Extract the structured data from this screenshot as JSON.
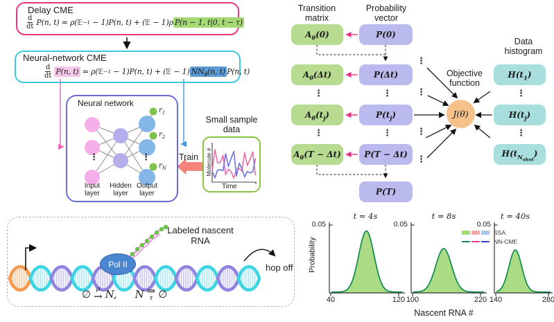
{
  "colors": {
    "delay_border": "#e83a7c",
    "nncme_border": "#3ec9de",
    "network_border": "#6a6ad4",
    "sample_border": "#88c440",
    "highlight_green": "#a5d974",
    "highlight_pink": "#f6c8ea",
    "highlight_blue": "#5b9ad2",
    "matrix_box": "#b7db90",
    "vector_box": "#babaee",
    "histogram_box": "#a9dede",
    "objective_circle": "#f6c289",
    "pink_arrow": "#e8308a"
  },
  "delay_cme": {
    "title": "Delay CME",
    "eq": {
      "num": "d",
      "den": "dt",
      "seg1": "P(n, t) = ρ(𝔼",
      "sup": "−1",
      "seg2": " − 1)P(n, t) + (𝔼 − 1)ρ",
      "highlight": "P(n − 1, t|0, t − τ)"
    }
  },
  "nn_cme": {
    "title": "Neural-network CME",
    "eq": {
      "num": "d",
      "den": "dt",
      "hl_pink": "P(n, t)",
      "seg1": " = ρ(𝔼",
      "sup": "−1",
      "seg2": " − 1)P(n, t) + (𝔼 − 1)",
      "hl_blue_base": "NN",
      "hl_blue_sub": "θ",
      "hl_blue_rest": "(n, t)",
      "seg3": "P(n, t)"
    }
  },
  "network": {
    "title": "Neural network",
    "dots": "⋮",
    "rates": [
      {
        "base": "r",
        "sub": "1"
      },
      {
        "base": "r",
        "sub": "2"
      },
      {
        "base": "r",
        "sub": "N"
      }
    ],
    "layers": [
      {
        "l1": "Input",
        "l2": "layer"
      },
      {
        "l1": "Hidden",
        "l2": "layer"
      },
      {
        "l1": "Output",
        "l2": "layer"
      }
    ]
  },
  "sample": {
    "title1": "Small sample",
    "title2": "data",
    "ylabel": "Molecule #",
    "xlabel": "Time",
    "train": "Train"
  },
  "flow": {
    "dots": "⋮",
    "matrix_header1": "Transition",
    "matrix_header2": "matrix",
    "vector_header1": "Probability",
    "vector_header2": "vector",
    "hist_header1": "Data",
    "hist_header2": "histogram",
    "objective1": "Objective",
    "objective2": "function",
    "objective_label": "J(θ)",
    "matrix": [
      {
        "base": "A",
        "sub": "θ",
        "pre": "(0)"
      },
      {
        "base": "A",
        "sub": "θ",
        "pre": "(Δt)"
      },
      {
        "base": "A",
        "sub": "θ",
        "pre": "(t",
        "isub": "j",
        "post": ")"
      },
      {
        "base": "A",
        "sub": "θ",
        "pre": "(T − Δt)"
      }
    ],
    "vector": [
      {
        "base": "P",
        "pre": "(0)"
      },
      {
        "base": "P",
        "pre": "(Δt)"
      },
      {
        "base": "P",
        "pre": "(t",
        "isub": "j",
        "post": ")"
      },
      {
        "base": "P",
        "pre": "(T − Δt)"
      },
      {
        "base": "P",
        "pre": "(T)"
      }
    ],
    "hist": [
      {
        "base": "H",
        "pre": "(t",
        "isub": "1",
        "post": ")"
      },
      {
        "base": "H",
        "pre": "(t",
        "isub": "j",
        "post": ")"
      },
      {
        "base": "H",
        "pre": "(t",
        "isub": "N",
        "isubsub": "shot",
        "post": ")"
      }
    ]
  },
  "gene": {
    "label1": "Labeled nascent",
    "label2": "RNA",
    "polii": "Pol II",
    "hopoff": "hop off",
    "rx": {
      "e1": "∅ ",
      "over": "ρ",
      "arr1": "→",
      "n1": " N,",
      "n2": "N",
      "arr2": "⇒",
      "under": "τ",
      "e2": " ∅"
    }
  },
  "chart_data": {
    "type": "area",
    "ylabel": "Probability",
    "xlabel": "Nascent RNA #",
    "ylim": [
      0,
      0.05
    ],
    "ytick_label": "0.05",
    "grid": false,
    "panels": [
      {
        "title": "t = 4s",
        "xlim": [
          40,
          120
        ],
        "xtick_labels": [
          "40",
          "120"
        ],
        "peak_x": 82,
        "peak_prob": 0.045,
        "sigma": 9
      },
      {
        "title": "t = 8s",
        "xlim": [
          100,
          220
        ],
        "xtick_labels": [
          "100",
          "220"
        ],
        "peak_x": 155,
        "peak_prob": 0.032,
        "sigma": 14
      },
      {
        "title": "t = 40s",
        "xlim": [
          140,
          280
        ],
        "xtick_labels": [
          "140",
          "280"
        ],
        "peak_x": 192,
        "peak_prob": 0.031,
        "sigma": 17
      }
    ],
    "legend": [
      {
        "label": "SSA",
        "style": "patch",
        "colors": [
          "#a6d97c",
          "#f2a8a8",
          "#a8c7ef"
        ]
      },
      {
        "label": "NN-CME",
        "style": "dash",
        "colors": [
          "#148a4e",
          "#e0359b",
          "#2a3cc4"
        ]
      }
    ],
    "fill_color": "#abdc85",
    "line_color": "#118a4e"
  }
}
